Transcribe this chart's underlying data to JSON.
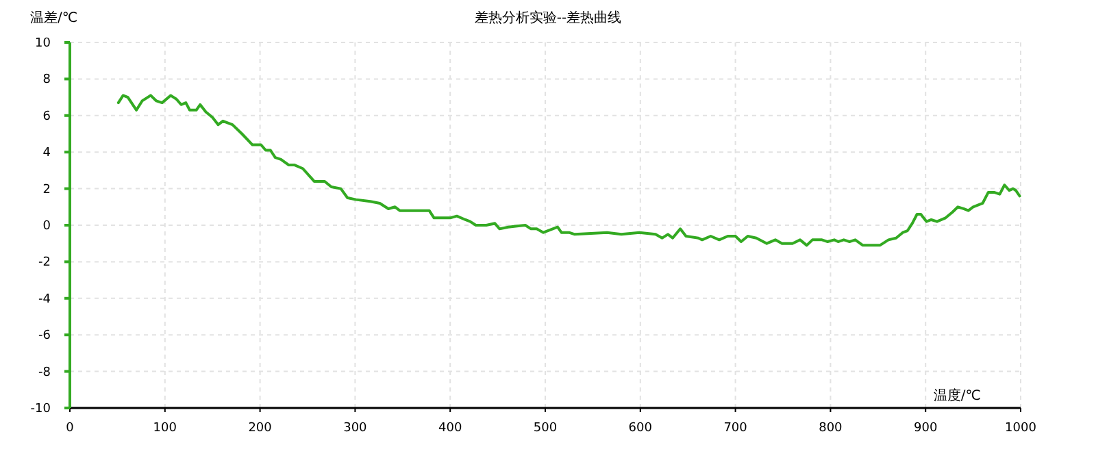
{
  "chart_data": {
    "type": "line",
    "title": "差热分析实验--差热曲线",
    "xlabel": "温度/℃",
    "ylabel": "温差/℃",
    "xlim": [
      0,
      1000
    ],
    "ylim": [
      -10,
      10
    ],
    "xticks": [
      0,
      100,
      200,
      300,
      400,
      500,
      600,
      700,
      800,
      900,
      1000
    ],
    "yticks": [
      -10,
      -8,
      -6,
      -4,
      -2,
      0,
      2,
      4,
      6,
      8,
      10
    ],
    "grid": true,
    "line_style": "solid",
    "x": [
      51,
      56,
      61,
      70,
      76,
      85,
      91,
      97,
      106,
      112,
      117,
      122,
      126,
      133,
      137,
      143,
      150,
      156,
      161,
      171,
      181,
      192,
      201,
      206,
      211,
      216,
      222,
      230,
      236,
      245,
      257,
      268,
      275,
      285,
      292,
      301,
      316,
      326,
      335,
      342,
      347,
      378,
      383,
      400,
      407,
      416,
      421,
      427,
      438,
      447,
      452,
      461,
      479,
      485,
      491,
      498,
      513,
      517,
      525,
      531,
      565,
      580,
      599,
      616,
      623,
      629,
      634,
      642,
      648,
      661,
      665,
      674,
      683,
      692,
      700,
      706,
      713,
      722,
      733,
      742,
      749,
      760,
      768,
      775,
      781,
      791,
      797,
      804,
      808,
      814,
      820,
      826,
      834,
      852,
      861,
      869,
      876,
      881,
      886,
      891,
      895,
      901,
      906,
      912,
      921,
      928,
      934,
      940,
      945,
      950,
      955,
      960,
      966,
      972,
      978,
      983,
      988,
      992,
      995,
      999
    ],
    "series": [
      {
        "color": "#33aa22",
        "values": [
          6.7,
          7.1,
          7.0,
          6.3,
          6.8,
          7.1,
          6.8,
          6.7,
          7.1,
          6.9,
          6.6,
          6.7,
          6.3,
          6.3,
          6.6,
          6.2,
          5.9,
          5.5,
          5.7,
          5.5,
          5.0,
          4.4,
          4.4,
          4.1,
          4.1,
          3.7,
          3.6,
          3.3,
          3.3,
          3.1,
          2.4,
          2.4,
          2.1,
          2.0,
          1.5,
          1.4,
          1.3,
          1.2,
          0.9,
          1.0,
          0.8,
          0.8,
          0.4,
          0.4,
          0.5,
          0.3,
          0.2,
          0.0,
          0.0,
          0.1,
          -0.2,
          -0.1,
          0.0,
          -0.2,
          -0.2,
          -0.4,
          -0.1,
          -0.4,
          -0.4,
          -0.5,
          -0.4,
          -0.5,
          -0.4,
          -0.5,
          -0.7,
          -0.5,
          -0.7,
          -0.2,
          -0.6,
          -0.7,
          -0.8,
          -0.6,
          -0.8,
          -0.6,
          -0.6,
          -0.9,
          -0.6,
          -0.7,
          -1.0,
          -0.8,
          -1.0,
          -1.0,
          -0.8,
          -1.1,
          -0.8,
          -0.8,
          -0.9,
          -0.8,
          -0.9,
          -0.8,
          -0.9,
          -0.8,
          -1.1,
          -1.1,
          -0.8,
          -0.7,
          -0.4,
          -0.3,
          0.1,
          0.6,
          0.6,
          0.2,
          0.3,
          0.2,
          0.4,
          0.7,
          1.0,
          0.9,
          0.8,
          1.0,
          1.1,
          1.2,
          1.8,
          1.8,
          1.7,
          2.2,
          1.9,
          2.0,
          1.9,
          1.6
        ]
      }
    ]
  }
}
